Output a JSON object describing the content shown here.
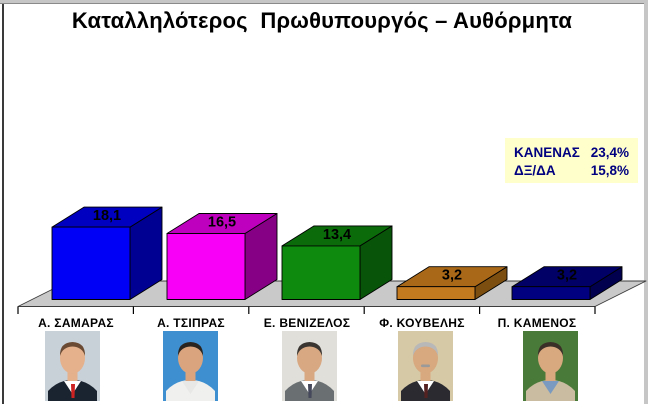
{
  "frame": {
    "top_strip_color": "#c6c6c6",
    "right_strip_color": "#c6c6c6",
    "left_line_color": "#3a3a3a"
  },
  "legend_box": {
    "bg": "#ffffcc",
    "text_color": "#000080",
    "rows": [
      {
        "label": "ΚΑΝΕΝΑΣ",
        "value": "23,4%"
      },
      {
        "label": "ΔΞ/ΔΑ",
        "value": "15,8%"
      }
    ]
  },
  "chart_data": {
    "type": "bar",
    "projection": "3d",
    "title": "Καταλληλότερος  Πρωθυπουργός – Αυθόρμητα",
    "categories": [
      "Α.  ΣΑΜΑΡΑΣ",
      "Α.  ΤΣΙΠΡΑΣ",
      "Ε.  ΒΕΝΙΖΕΛΟΣ",
      "Φ. ΚΟΥΒΕΛΗΣ",
      "Π. ΚΑΜΕΝΟΣ"
    ],
    "values": [
      18.1,
      16.5,
      13.4,
      3.2,
      3.2
    ],
    "value_labels": [
      "18,1",
      "16,5",
      "13,4",
      "3,2",
      "3,2"
    ],
    "ylim": [
      0,
      20
    ],
    "grid": false,
    "legend": false,
    "xlabel": "",
    "ylabel": "",
    "floor_color": "#c9c9c9",
    "bar_colors": [
      {
        "front": "#0000f6",
        "top": "#0000c0",
        "side": "#000092"
      },
      {
        "front": "#f800f8",
        "top": "#be00be",
        "side": "#850085"
      },
      {
        "front": "#0e8a0e",
        "top": "#0b6b0b",
        "side": "#085408"
      },
      {
        "front": "#c47a1e",
        "top": "#a96817",
        "side": "#7c4e10"
      },
      {
        "front": "#000080",
        "top": "#000066",
        "side": "#00004e"
      }
    ]
  },
  "portraits": [
    {
      "name": "portrait-samaras",
      "bg": "#c8d0d8",
      "jacket": "#1a2430",
      "shirt": "#ffffff",
      "tie": "#cc2222",
      "skin": "#e4b18c",
      "hair": "#6b4a33",
      "mustache": false
    },
    {
      "name": "portrait-tsipras",
      "bg": "#3e8fd0",
      "jacket": "#f0f0ee",
      "shirt": "#e8e8e6",
      "tie": "",
      "skin": "#d9a47e",
      "hair": "#2a2420",
      "mustache": false
    },
    {
      "name": "portrait-venizelos",
      "bg": "#e0dfd9",
      "jacket": "#6a6f72",
      "shirt": "#ffffff",
      "tie": "#44485a",
      "skin": "#d8a882",
      "hair": "#3a3530",
      "mustache": false
    },
    {
      "name": "portrait-kouvelis",
      "bg": "#d6c9a6",
      "jacket": "#2a2a30",
      "shirt": "#ffffff",
      "tie": "#552222",
      "skin": "#d8a87e",
      "hair": "#b8b8b8",
      "mustache": true
    },
    {
      "name": "portrait-kamenos",
      "bg": "#4a7a3a",
      "jacket": "#c9bca0",
      "shirt": "#7a9ac0",
      "tie": "",
      "skin": "#d8a87e",
      "hair": "#3a3028",
      "mustache": false
    }
  ]
}
